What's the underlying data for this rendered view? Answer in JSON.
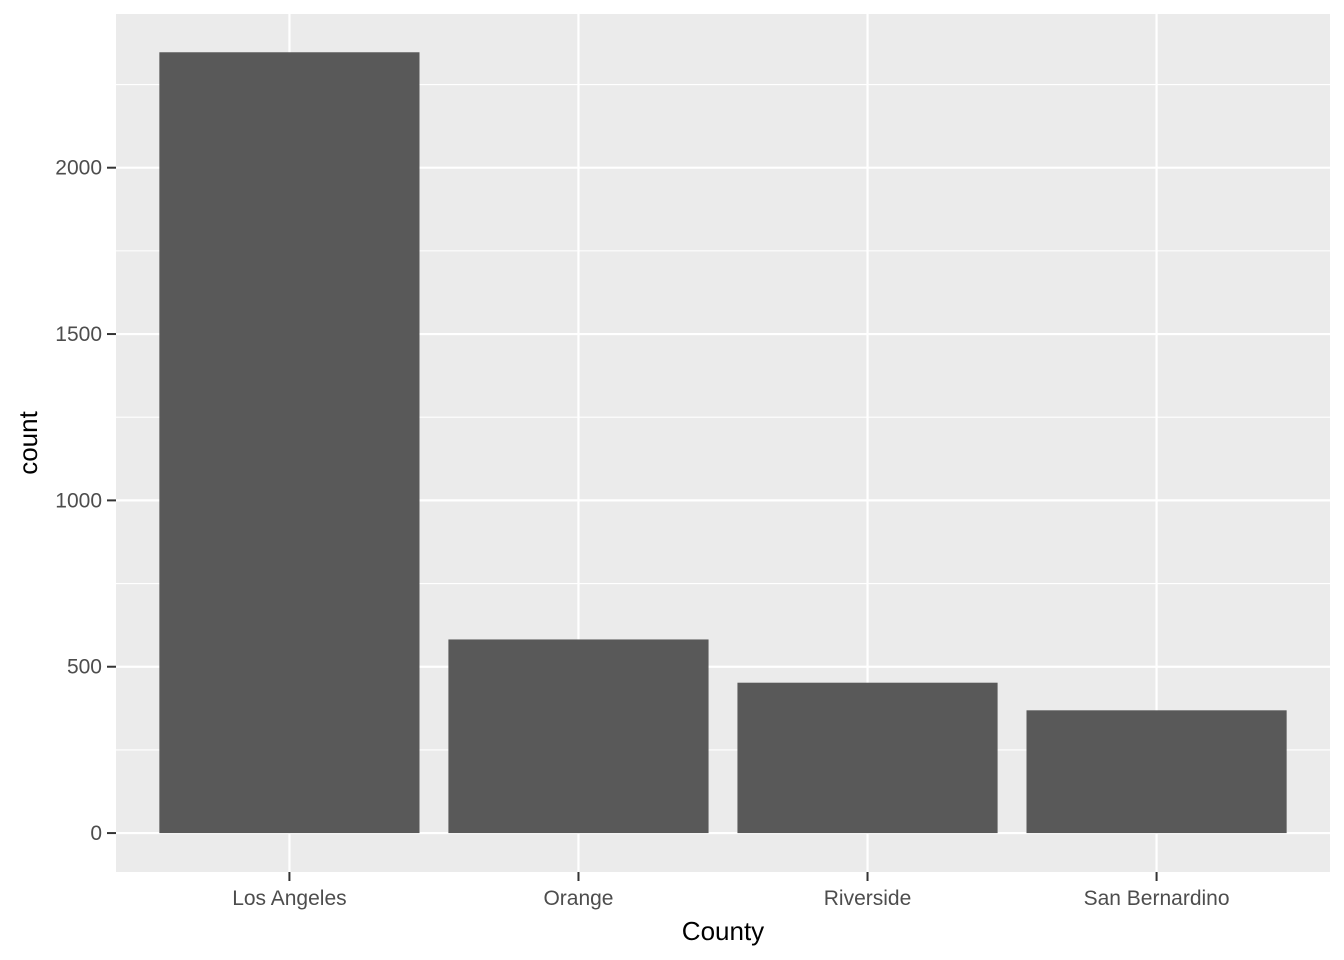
{
  "chart_data": {
    "type": "bar",
    "categories": [
      "Los Angeles",
      "Orange",
      "Riverside",
      "San Bernardino"
    ],
    "values": [
      2347,
      582,
      452,
      369
    ],
    "title": "",
    "xlabel": "County",
    "ylabel": "count",
    "ylim": [
      -117,
      2462
    ],
    "yticks": [
      0,
      500,
      1000,
      1500,
      2000
    ],
    "ytick_labels": [
      "0",
      "500",
      "1000",
      "1500",
      "2000"
    ],
    "grid": true,
    "legend": "none",
    "colors": {
      "bar": "#595959",
      "panel": "#ebebeb",
      "grid": "#ffffff",
      "tick_text": "#4d4d4d",
      "tick_mark": "#333333"
    }
  }
}
